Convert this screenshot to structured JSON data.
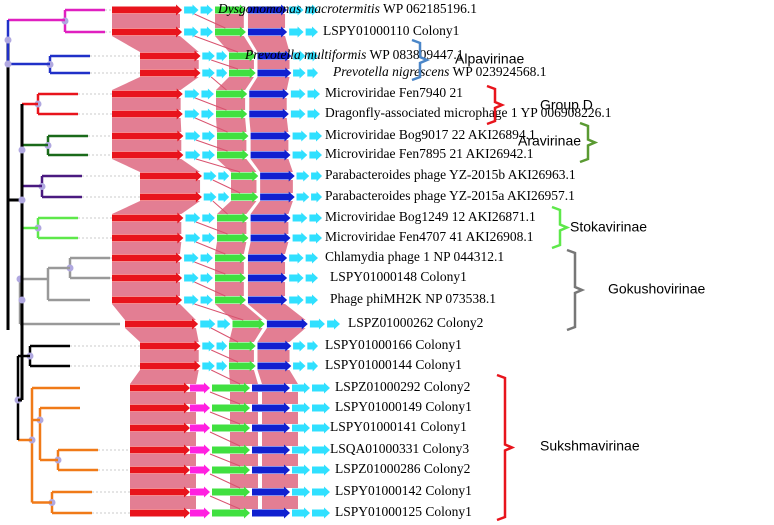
{
  "rows": [
    {
      "italic": "Dysgonomonas macrotermitis",
      "label": "WP 062185196.1"
    },
    {
      "label": "LSPY01000110 Colony1"
    },
    {
      "italic": "Prevotella multiformis",
      "label": "WP 083809447.1"
    },
    {
      "italic": "Prevotella nigrescens",
      "label": "WP 023924568.1"
    },
    {
      "label": "Microviridae Fen7940 21"
    },
    {
      "label": "Dragonfly-associated microphage 1 YP 006908226.1"
    },
    {
      "label": "Microviridae Bog9017 22 AKI26894.1"
    },
    {
      "label": "Microviridae Fen7895 21 AKI26942.1"
    },
    {
      "label": "Parabacteroides phage YZ-2015b AKI26963.1"
    },
    {
      "label": "Parabacteroides phage YZ-2015a AKI26957.1"
    },
    {
      "label": "Microviridae Bog1249 12 AKI26871.1"
    },
    {
      "label": "Microviridae Fen4707 41 AKI26908.1"
    },
    {
      "label": "Chlamydia phage 1 NP 044312.1"
    },
    {
      "label": "LSPY01000148 Colony1"
    },
    {
      "label": "Phage phiMH2K NP 073538.1"
    },
    {
      "label": "LSPZ01000262 Colony2"
    },
    {
      "label": "LSPY01000166 Colony1"
    },
    {
      "label": "LSPY01000144 Colony1"
    },
    {
      "label": "LSPZ01000292 Colony2"
    },
    {
      "label": "LSPY01000149 Colony1"
    },
    {
      "label": "LSPY01000141 Colony1"
    },
    {
      "label": "LSQA01000331 Colony3"
    },
    {
      "label": "LSPZ01000286 Colony2"
    },
    {
      "label": "LSPY01000142 Colony1"
    },
    {
      "label": "LSPY01000125 Colony1"
    }
  ],
  "groups": [
    {
      "name": "Alpavirinae",
      "color": "#4a86c8"
    },
    {
      "name": "Group D",
      "color": "#e8141c"
    },
    {
      "name": "Aravirinae",
      "color": "#5a9a32"
    },
    {
      "name": "Stokavirinae",
      "color": "#5ee84a"
    },
    {
      "name": "Gokushovirinae",
      "color": "#777777"
    },
    {
      "name": "Sukshmavirinae",
      "color": "#e8141c"
    }
  ]
}
